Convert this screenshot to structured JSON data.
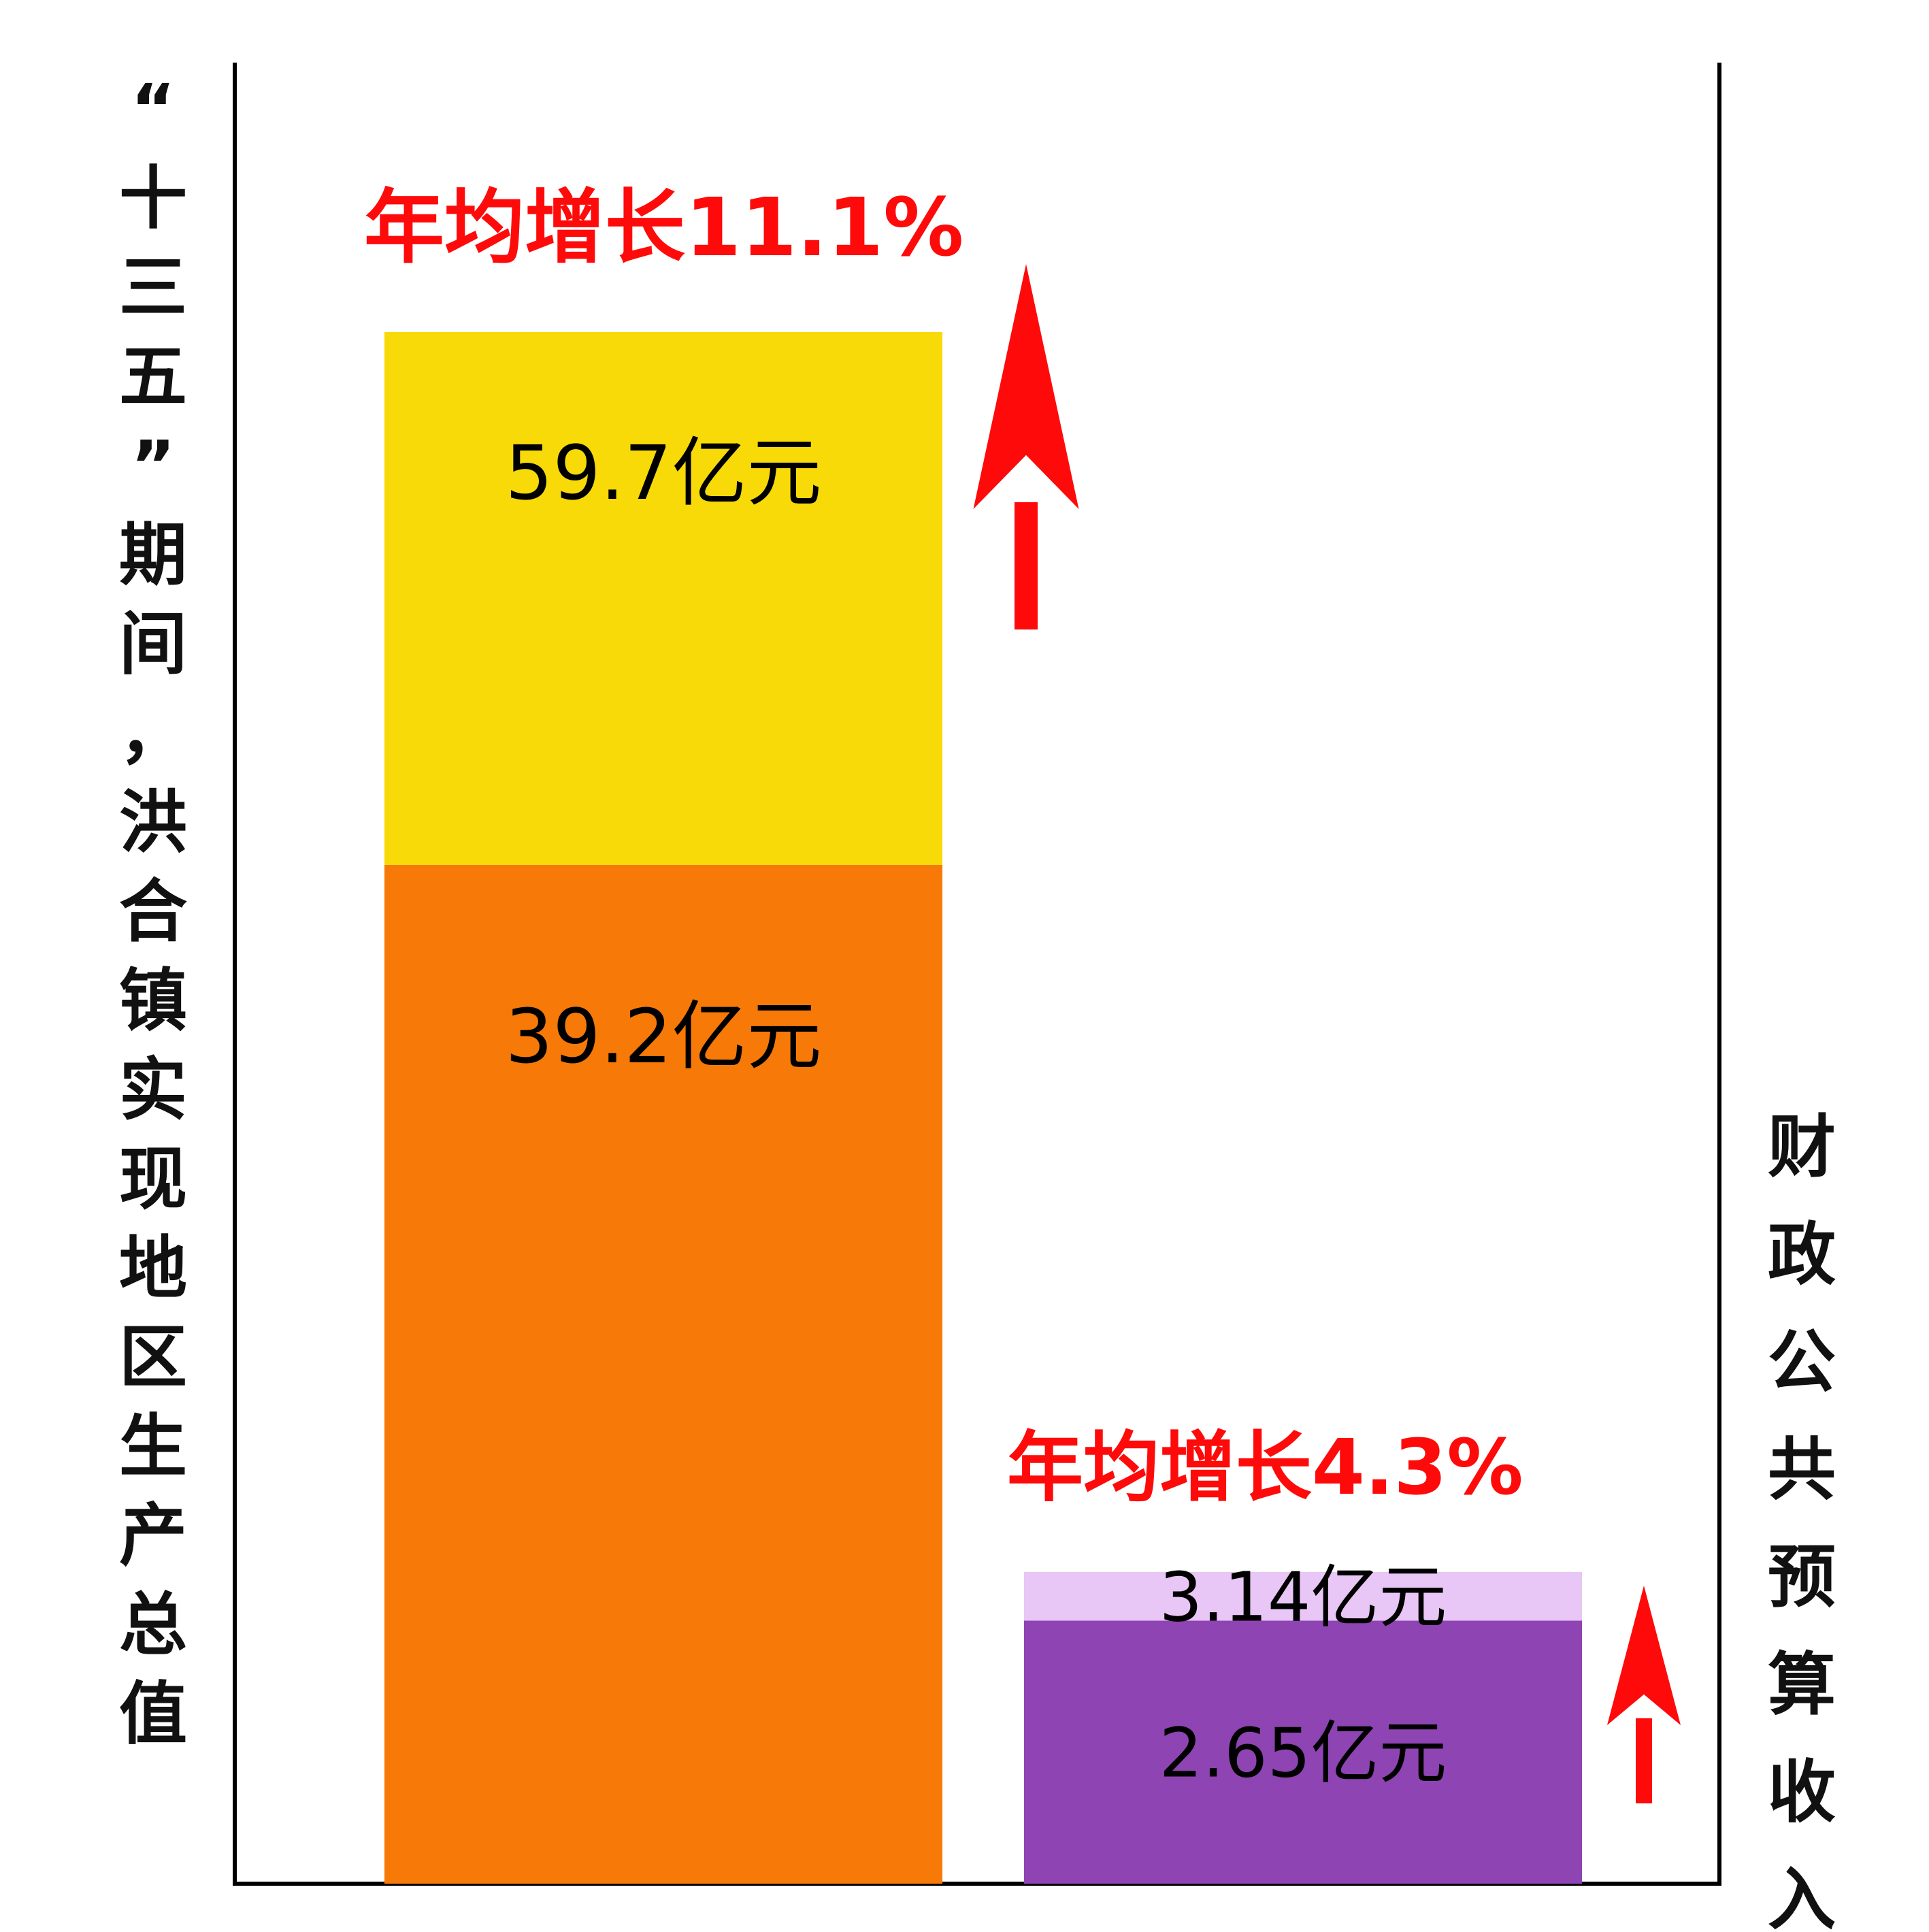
{
  "chart_data": {
    "type": "bar",
    "stacked": true,
    "left_title": "“十三五”期间，洪合镇实现地区生产总值",
    "right_title": "财政公共预算收入",
    "bars": [
      {
        "segments": [
          {
            "value": 39.2,
            "label": "39.2亿元",
            "color": "#f77908"
          },
          {
            "value": 20.5,
            "label": "59.7亿元",
            "color": "#f7da08"
          }
        ],
        "total": 59.7,
        "growth_label": "年均增长11.1%"
      },
      {
        "segments": [
          {
            "value": 2.65,
            "label": "2.65亿元",
            "color": "#8e44b2"
          },
          {
            "value": 0.49,
            "label": "3.14亿元",
            "color": "#e8c6f5"
          }
        ],
        "total": 3.14,
        "growth_label": "年均增长4.3%"
      }
    ],
    "colors": {
      "axis": "#000000",
      "arrow": "#ff0a0a",
      "growth_text": "#ff0a0a"
    }
  }
}
